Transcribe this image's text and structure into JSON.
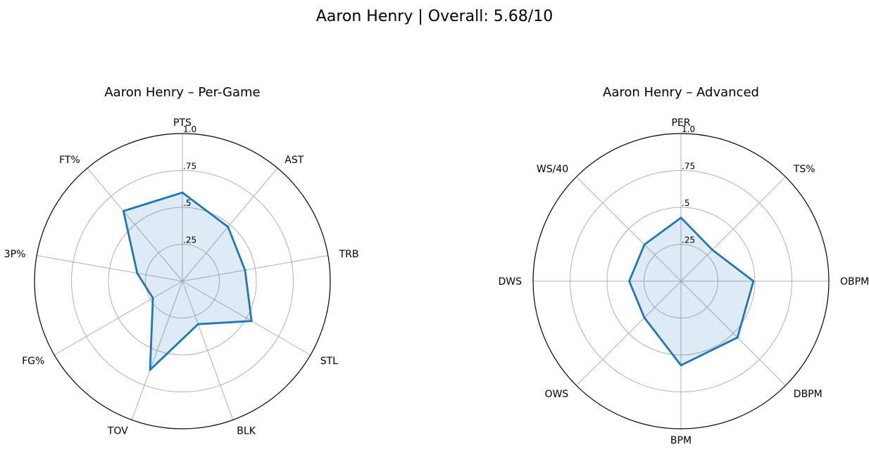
{
  "figure": {
    "suptitle": "Aaron Henry | Overall: 5.68/10"
  },
  "chart_data": [
    {
      "type": "radar",
      "title": "Aaron Henry – Per-Game",
      "categories": [
        "PTS",
        "AST",
        "TRB",
        "STL",
        "BLK",
        "TOV",
        "FG%",
        "3P%",
        "FT%"
      ],
      "values": [
        0.6,
        0.48,
        0.43,
        0.54,
        0.31,
        0.64,
        0.23,
        0.31,
        0.62
      ],
      "rlim": [
        0,
        1
      ],
      "rticks": [
        0.25,
        0.5,
        0.75,
        1.0
      ],
      "rtick_labels": [
        ".25",
        ".5",
        ".75",
        "1.0"
      ],
      "grid": true,
      "line_color": "#1f77b4",
      "fill_color": "#1f77b4"
    },
    {
      "type": "radar",
      "title": "Aaron Henry – Advanced",
      "categories": [
        "PER",
        "TS%",
        "OBPM",
        "DBPM",
        "BPM",
        "OWS",
        "DWS",
        "WS/40"
      ],
      "values": [
        0.43,
        0.3,
        0.49,
        0.54,
        0.57,
        0.35,
        0.35,
        0.35
      ],
      "rlim": [
        0,
        1
      ],
      "rticks": [
        0.25,
        0.5,
        0.75,
        1.0
      ],
      "rtick_labels": [
        ".25",
        ".5",
        ".75",
        "1.0"
      ],
      "grid": true,
      "line_color": "#1f77b4",
      "fill_color": "#1f77b4"
    }
  ]
}
